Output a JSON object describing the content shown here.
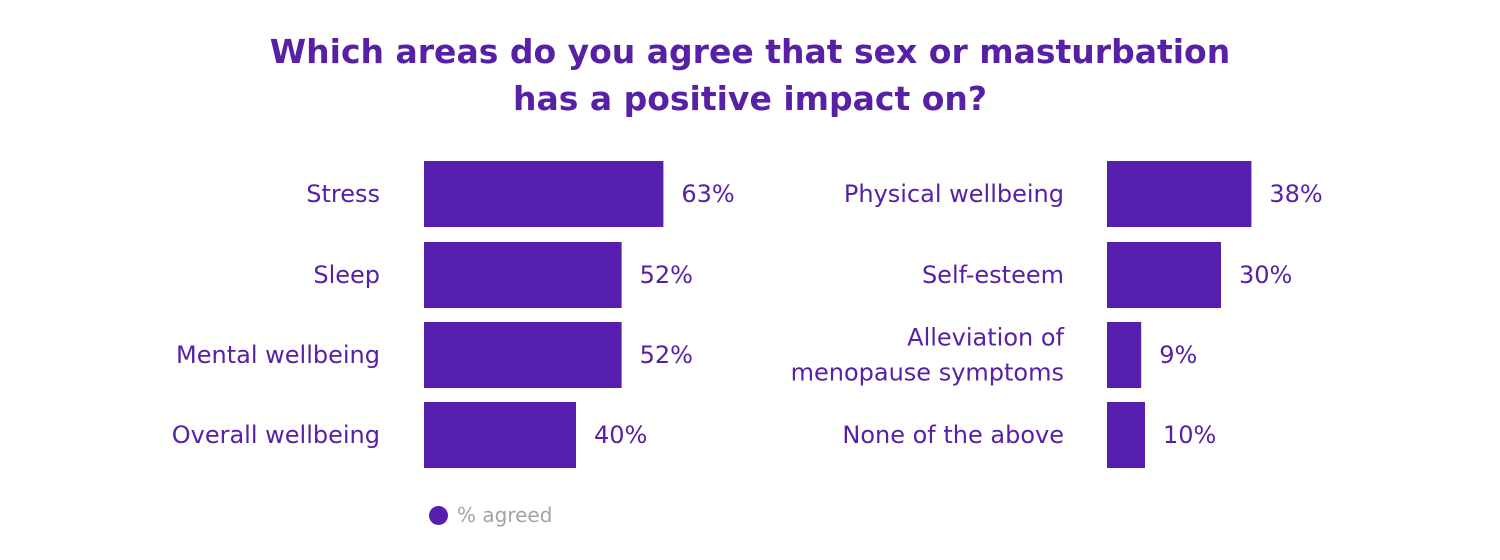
{
  "colors": {
    "bar": "#561fae",
    "text": "#5720a5",
    "legend_text": "#a3a3a3"
  },
  "chart_data": {
    "type": "bar",
    "orientation": "horizontal",
    "title": "Which areas do you agree that sex or masturbation has a positive impact on?",
    "title_lines": [
      "Which areas do you agree that sex or masturbation",
      "has a positive impact on?"
    ],
    "legend": {
      "label": "% agreed",
      "placement": "bottom-left"
    },
    "grid": false,
    "value_suffix": "%",
    "panels": [
      {
        "categories": [
          [
            "Stress"
          ],
          [
            "Sleep"
          ],
          [
            "Mental wellbeing"
          ],
          [
            "Overall wellbeing"
          ]
        ],
        "values": [
          63,
          52,
          52,
          40
        ],
        "value_labels": [
          "63%",
          "52%",
          "52%",
          "40%"
        ]
      },
      {
        "categories": [
          [
            "Physical wellbeing"
          ],
          [
            "Self-esteem"
          ],
          [
            "Alleviation of",
            "menopause symptoms"
          ],
          [
            "None of the above"
          ]
        ],
        "values": [
          38,
          30,
          9,
          10
        ],
        "value_labels": [
          "38%",
          "30%",
          "9%",
          "10%"
        ]
      }
    ]
  }
}
